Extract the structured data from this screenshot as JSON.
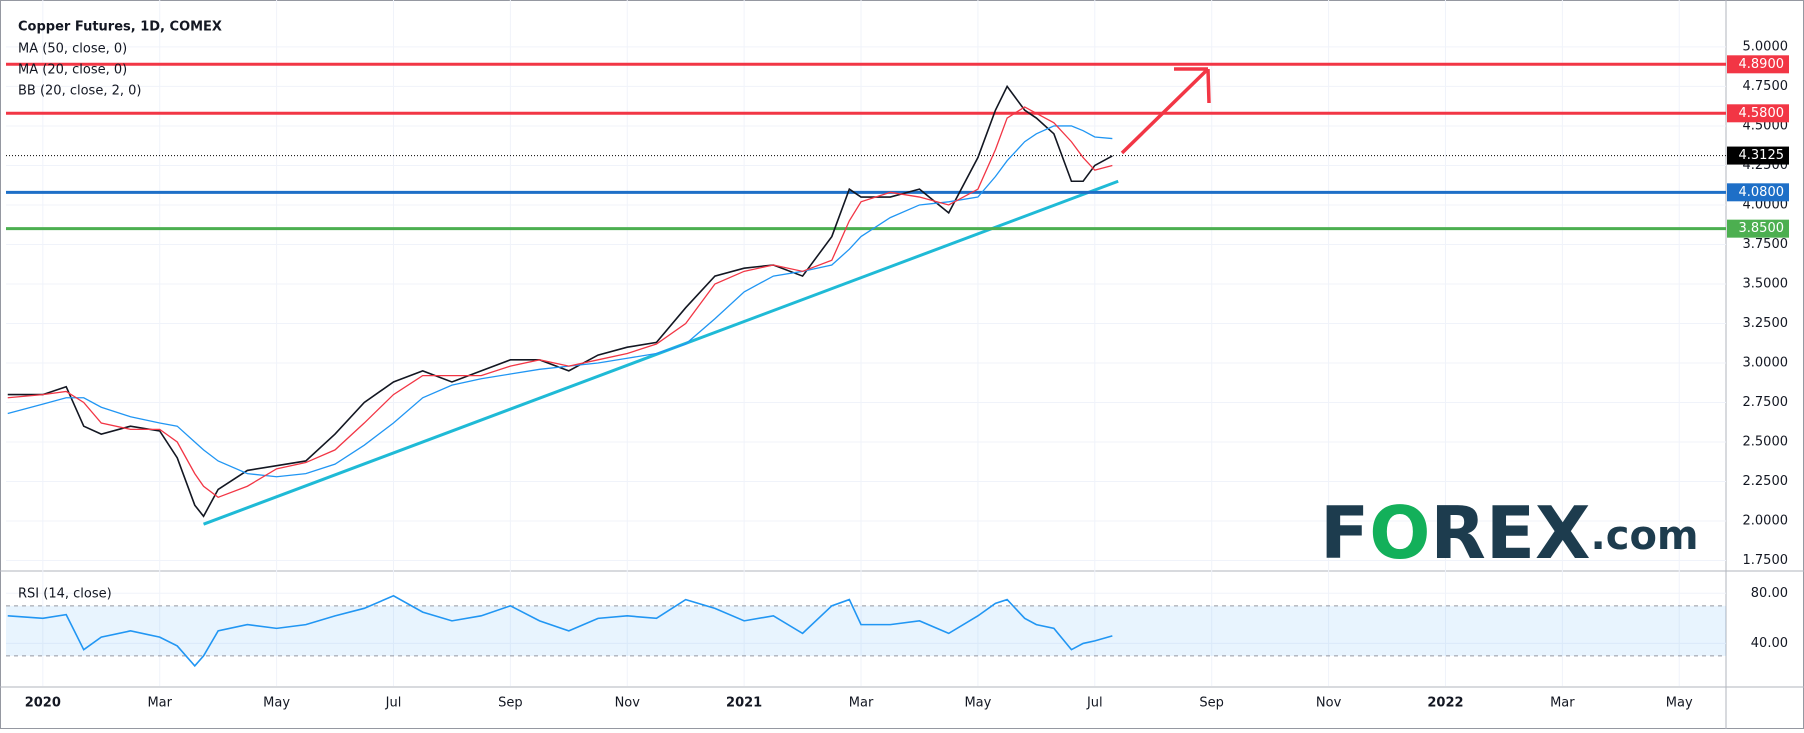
{
  "chart_data": [
    {
      "type": "line",
      "title": "Copper Futures, 1D, COMEX",
      "indicators": [
        "MA (50, close, 0)",
        "MA (20, close, 0)",
        "BB (20, close, 2, 0)"
      ],
      "x": [
        -0.6,
        0,
        0.4,
        0.7,
        1.0,
        1.5,
        2.0,
        2.3,
        2.6,
        2.75,
        3.0,
        3.5,
        4.0,
        4.5,
        5.0,
        5.5,
        6.0,
        6.5,
        7.0,
        7.5,
        8.0,
        8.5,
        9.0,
        9.5,
        10.0,
        10.5,
        11.0,
        11.5,
        12.0,
        12.5,
        13.0,
        13.5,
        13.8,
        14.0,
        14.5,
        15.0,
        15.5,
        16.0,
        16.3,
        16.5,
        16.8,
        17.0,
        17.3,
        17.6,
        17.8,
        18.0,
        18.3
      ],
      "series": [
        {
          "name": "Copper Futures",
          "color": "#131722",
          "values": [
            2.8,
            2.8,
            2.85,
            2.6,
            2.55,
            2.6,
            2.57,
            2.4,
            2.1,
            2.03,
            2.2,
            2.32,
            2.35,
            2.38,
            2.55,
            2.75,
            2.88,
            2.95,
            2.88,
            2.95,
            3.02,
            3.02,
            2.95,
            3.05,
            3.1,
            3.13,
            3.35,
            3.55,
            3.6,
            3.62,
            3.55,
            3.8,
            4.1,
            4.05,
            4.05,
            4.1,
            3.95,
            4.3,
            4.6,
            4.75,
            4.6,
            4.55,
            4.45,
            4.15,
            4.15,
            4.25,
            4.31
          ]
        },
        {
          "name": "MA (50, close, 0)",
          "color": "#2196f3",
          "values": [
            2.68,
            2.74,
            2.78,
            2.78,
            2.72,
            2.66,
            2.62,
            2.6,
            2.5,
            2.45,
            2.38,
            2.3,
            2.28,
            2.3,
            2.36,
            2.48,
            2.62,
            2.78,
            2.86,
            2.9,
            2.93,
            2.96,
            2.98,
            3.0,
            3.03,
            3.06,
            3.12,
            3.28,
            3.45,
            3.55,
            3.58,
            3.62,
            3.72,
            3.8,
            3.92,
            4.0,
            4.02,
            4.05,
            4.18,
            4.28,
            4.4,
            4.45,
            4.5,
            4.5,
            4.47,
            4.43,
            4.42
          ]
        },
        {
          "name": "MA (20, close, 0)",
          "color": "#f23645",
          "values": [
            2.78,
            2.8,
            2.82,
            2.75,
            2.62,
            2.58,
            2.58,
            2.5,
            2.3,
            2.22,
            2.15,
            2.22,
            2.33,
            2.37,
            2.45,
            2.62,
            2.8,
            2.92,
            2.92,
            2.92,
            2.98,
            3.02,
            2.98,
            3.02,
            3.06,
            3.12,
            3.25,
            3.5,
            3.58,
            3.62,
            3.58,
            3.65,
            3.9,
            4.02,
            4.08,
            4.05,
            4.0,
            4.1,
            4.35,
            4.55,
            4.62,
            4.58,
            4.52,
            4.4,
            4.3,
            4.22,
            4.25
          ]
        }
      ],
      "xlim": [
        -0.63,
        28.8
      ],
      "xticks": [
        {
          "value": 0,
          "label": "2020"
        },
        {
          "value": 2,
          "label": "Mar"
        },
        {
          "value": 4,
          "label": "May"
        },
        {
          "value": 6,
          "label": "Jul"
        },
        {
          "value": 8,
          "label": "Sep"
        },
        {
          "value": 10,
          "label": "Nov"
        },
        {
          "value": 12,
          "label": "2021"
        },
        {
          "value": 14,
          "label": "Mar"
        },
        {
          "value": 16,
          "label": "May"
        },
        {
          "value": 18,
          "label": "Jul"
        },
        {
          "value": 20,
          "label": "Sep"
        },
        {
          "value": 22,
          "label": "Nov"
        },
        {
          "value": 24,
          "label": "2022"
        },
        {
          "value": 26,
          "label": "Mar"
        },
        {
          "value": 28,
          "label": "May"
        }
      ],
      "ylim": [
        1.69,
        5.24
      ],
      "yticks": [
        {
          "value": 1.75,
          "label": "1.7500"
        },
        {
          "value": 2.0,
          "label": "2.0000"
        },
        {
          "value": 2.25,
          "label": "2.2500"
        },
        {
          "value": 2.5,
          "label": "2.5000"
        },
        {
          "value": 2.75,
          "label": "2.7500"
        },
        {
          "value": 3.0,
          "label": "3.0000"
        },
        {
          "value": 3.25,
          "label": "3.2500"
        },
        {
          "value": 3.5,
          "label": "3.5000"
        },
        {
          "value": 3.75,
          "label": "3.7500"
        },
        {
          "value": 4.0,
          "label": "4.0000"
        },
        {
          "value": 4.25,
          "label": "4.2500"
        },
        {
          "value": 4.5,
          "label": "4.5000"
        },
        {
          "value": 4.75,
          "label": "4.7500"
        },
        {
          "value": 5.0,
          "label": "5.0000"
        }
      ],
      "levels": [
        {
          "value": 4.89,
          "label": "4.8900",
          "color": "#f23645"
        },
        {
          "value": 4.58,
          "label": "4.5800",
          "color": "#f23645"
        },
        {
          "value": 4.08,
          "label": "4.0800",
          "color": "#1e6fc7"
        },
        {
          "value": 3.85,
          "label": "3.8500",
          "color": "#4caf50"
        }
      ],
      "last_price": {
        "value": 4.3125,
        "label": "4.3125",
        "color": "#000000"
      },
      "trendline": {
        "x": [
          2.75,
          18.4
        ],
        "y": [
          1.98,
          4.15
        ],
        "color": "#1fbad6"
      },
      "logo": [
        "F",
        "O",
        "REX",
        ".com"
      ]
    },
    {
      "type": "line",
      "title": "RSI (14, close)",
      "x": [
        -0.6,
        0,
        0.4,
        0.7,
        1.0,
        1.5,
        2.0,
        2.3,
        2.6,
        2.75,
        3.0,
        3.5,
        4.0,
        4.5,
        5.0,
        5.5,
        6.0,
        6.5,
        7.0,
        7.5,
        8.0,
        8.5,
        9.0,
        9.5,
        10.0,
        10.5,
        11.0,
        11.5,
        12.0,
        12.5,
        13.0,
        13.5,
        13.8,
        14.0,
        14.5,
        15.0,
        15.5,
        16.0,
        16.3,
        16.5,
        16.8,
        17.0,
        17.3,
        17.6,
        17.8,
        18.0,
        18.3
      ],
      "series": [
        {
          "name": "RSI (14, close)",
          "color": "#2196f3",
          "values": [
            62,
            60,
            63,
            35,
            45,
            50,
            45,
            38,
            22,
            30,
            50,
            55,
            52,
            55,
            62,
            68,
            78,
            65,
            58,
            62,
            70,
            58,
            50,
            60,
            62,
            60,
            75,
            68,
            58,
            62,
            48,
            70,
            75,
            55,
            55,
            58,
            48,
            62,
            72,
            75,
            60,
            55,
            52,
            35,
            40,
            42,
            46
          ]
        }
      ],
      "ylim": [
        6,
        97
      ],
      "yticks": [
        {
          "value": 40,
          "label": "40.00"
        },
        {
          "value": 80,
          "label": "80.00"
        }
      ],
      "bands": [
        30,
        70
      ]
    }
  ]
}
